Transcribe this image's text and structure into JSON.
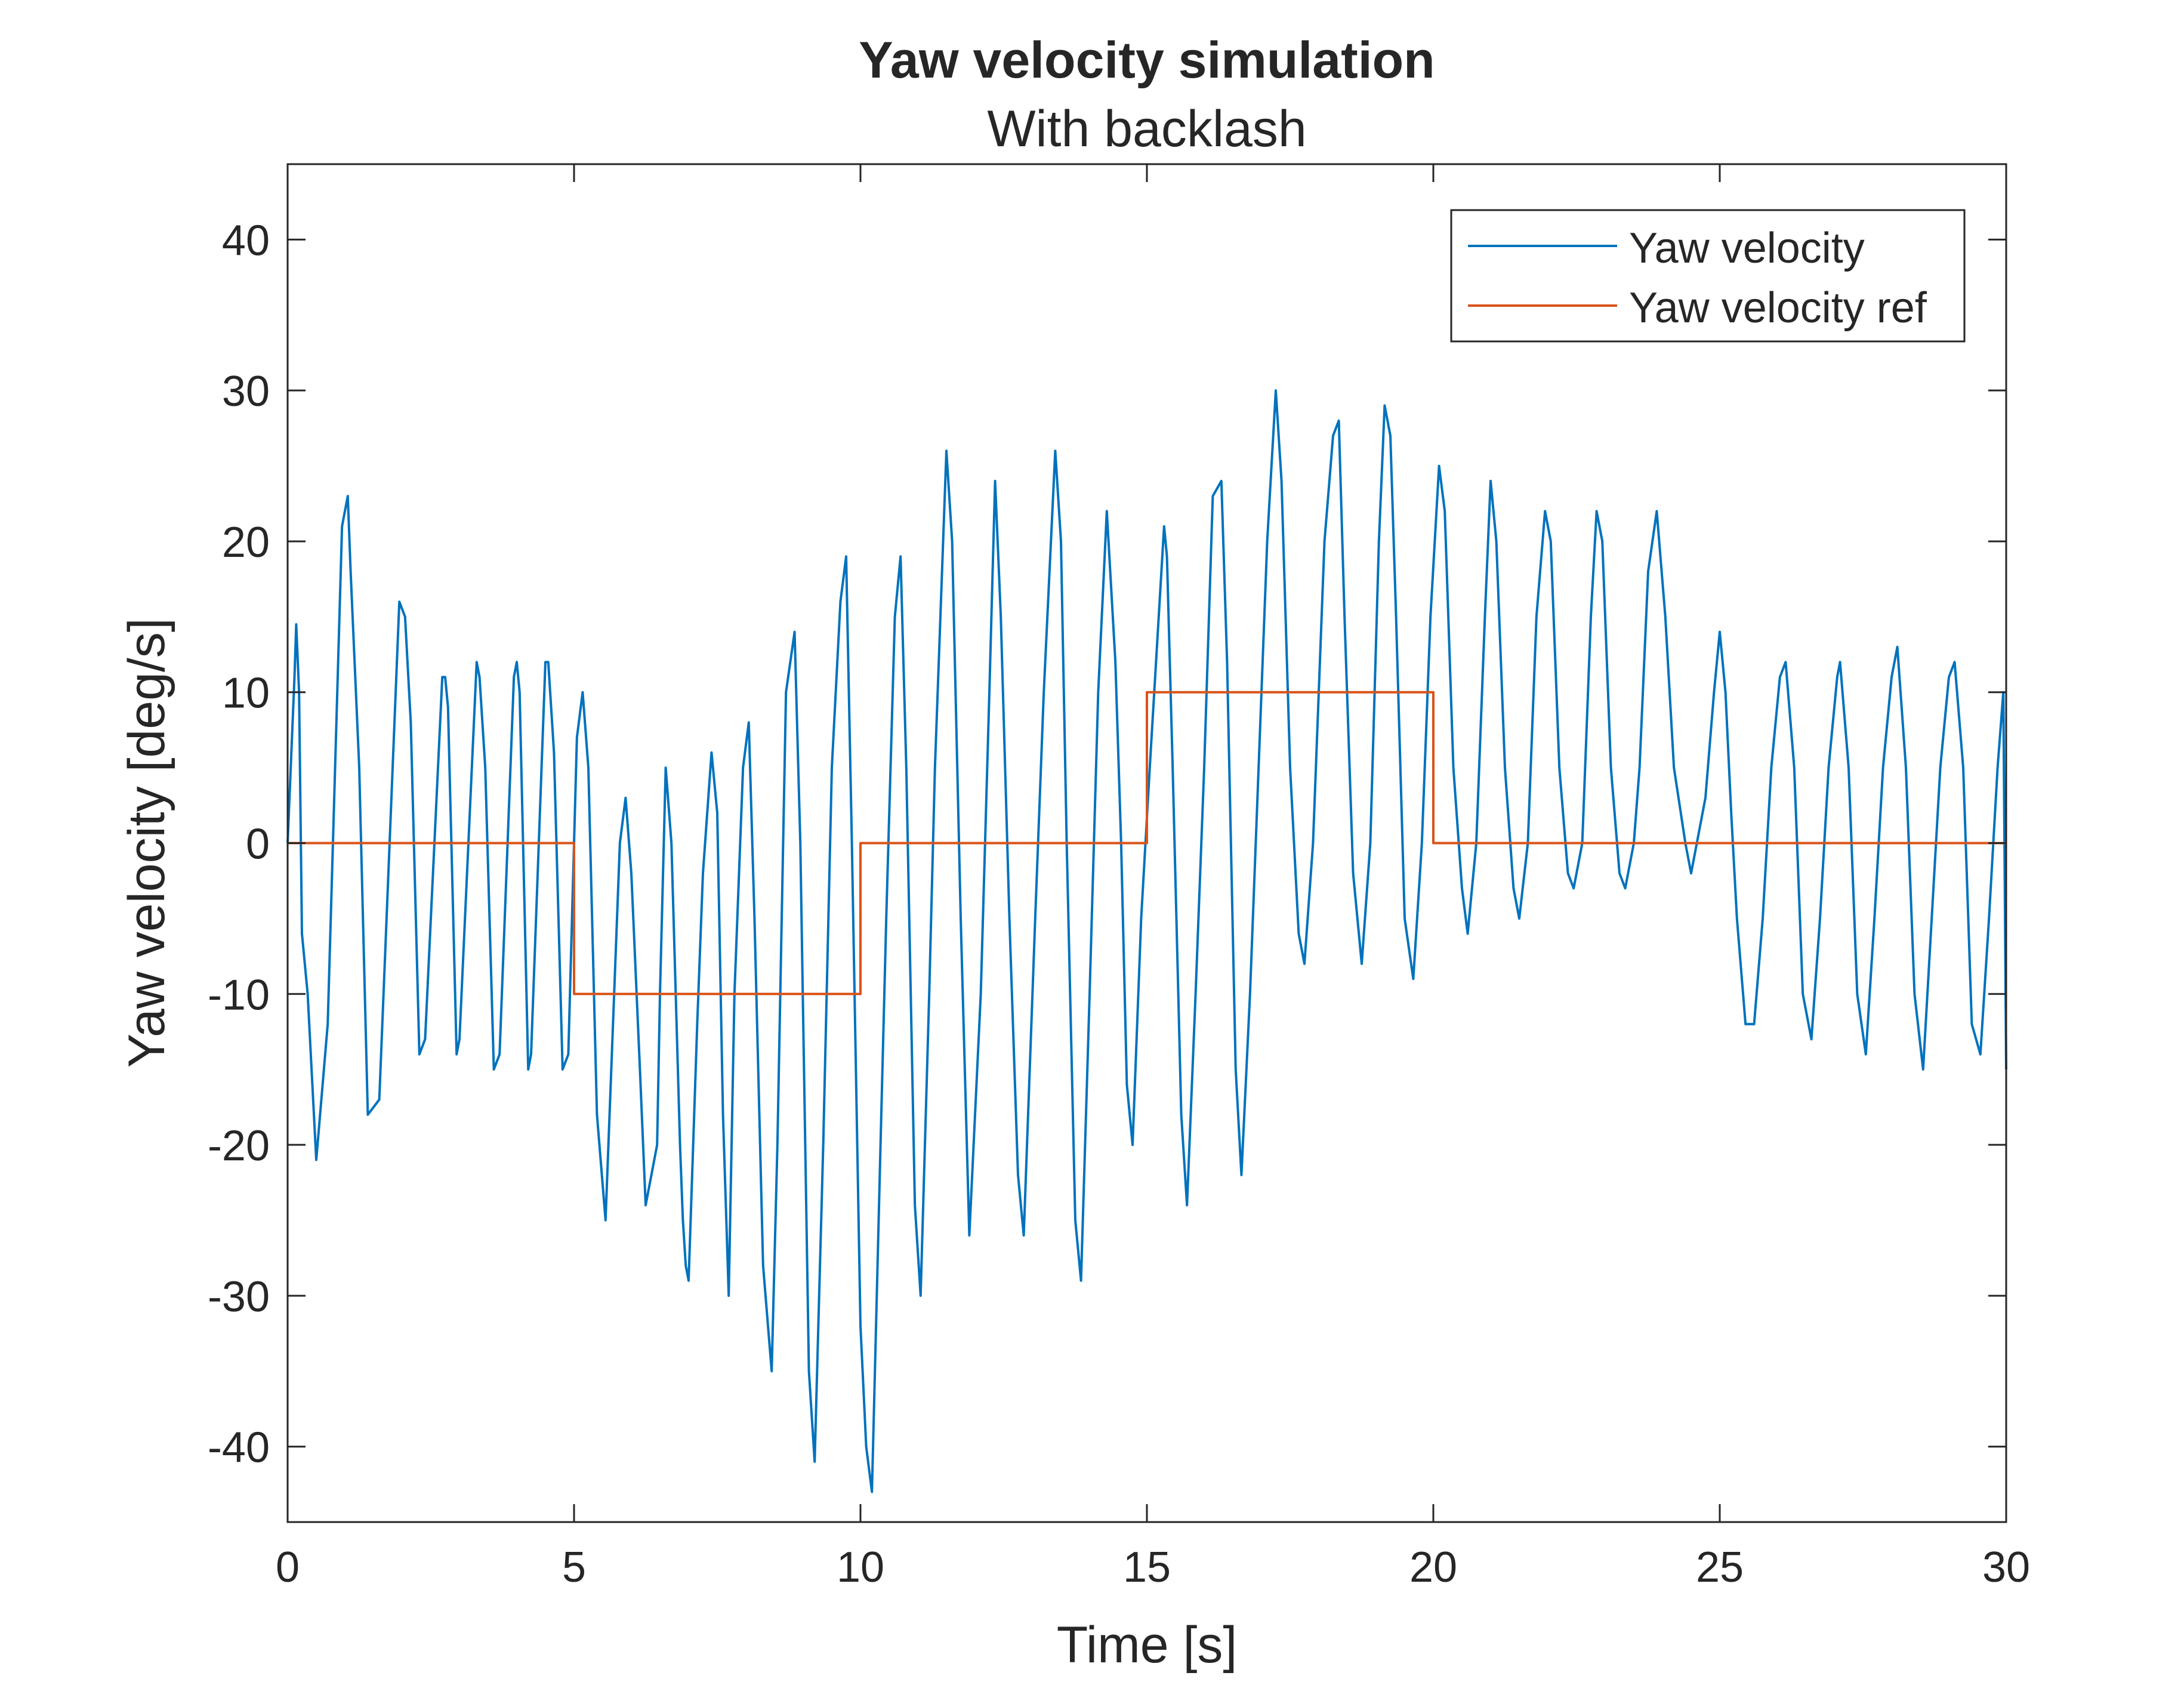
{
  "chart_data": {
    "type": "line",
    "title": "Yaw velocity simulation",
    "subtitle": "With backlash",
    "xlabel": "Time [s]",
    "ylabel": "Yaw velocity [deg/s]",
    "xlim": [
      0,
      30
    ],
    "ylim": [
      -45,
      45
    ],
    "xticks": [
      0,
      5,
      10,
      15,
      20,
      25,
      30
    ],
    "yticks": [
      -40,
      -30,
      -20,
      -10,
      0,
      10,
      20,
      30,
      40
    ],
    "grid": false,
    "legend": {
      "location": "top-right",
      "entries": [
        "Yaw velocity",
        "Yaw velocity ref"
      ]
    },
    "series": [
      {
        "name": "Yaw velocity",
        "color": "#0072BD",
        "points": [
          [
            0,
            0
          ],
          [
            0.12,
            11
          ],
          [
            0.15,
            14.5
          ],
          [
            0.2,
            10
          ],
          [
            0.25,
            -6
          ],
          [
            0.35,
            -10
          ],
          [
            0.5,
            -21
          ],
          [
            0.7,
            -12
          ],
          [
            0.95,
            21
          ],
          [
            1.05,
            23
          ],
          [
            1.1,
            18
          ],
          [
            1.25,
            5
          ],
          [
            1.4,
            -18
          ],
          [
            1.6,
            -17
          ],
          [
            1.95,
            16
          ],
          [
            2.05,
            15
          ],
          [
            2.15,
            8
          ],
          [
            2.3,
            -14
          ],
          [
            2.4,
            -13
          ],
          [
            2.7,
            11
          ],
          [
            2.75,
            11
          ],
          [
            2.8,
            9
          ],
          [
            2.95,
            -14
          ],
          [
            3.0,
            -13
          ],
          [
            3.3,
            12
          ],
          [
            3.35,
            11
          ],
          [
            3.45,
            5
          ],
          [
            3.6,
            -15
          ],
          [
            3.7,
            -14
          ],
          [
            3.95,
            11
          ],
          [
            4.0,
            12
          ],
          [
            4.05,
            10
          ],
          [
            4.2,
            -15
          ],
          [
            4.25,
            -14
          ],
          [
            4.5,
            12
          ],
          [
            4.55,
            12
          ],
          [
            4.65,
            6
          ],
          [
            4.8,
            -15
          ],
          [
            4.9,
            -14
          ],
          [
            5.05,
            7
          ],
          [
            5.15,
            10
          ],
          [
            5.25,
            5
          ],
          [
            5.4,
            -18
          ],
          [
            5.55,
            -25
          ],
          [
            5.7,
            -10
          ],
          [
            5.8,
            0
          ],
          [
            5.9,
            3
          ],
          [
            6.0,
            -2
          ],
          [
            6.15,
            -15
          ],
          [
            6.25,
            -24
          ],
          [
            6.45,
            -20
          ],
          [
            6.5,
            -10
          ],
          [
            6.6,
            5
          ],
          [
            6.7,
            0
          ],
          [
            6.85,
            -20
          ],
          [
            6.9,
            -25
          ],
          [
            6.95,
            -28
          ],
          [
            7.0,
            -29
          ],
          [
            7.15,
            -12
          ],
          [
            7.25,
            -2
          ],
          [
            7.4,
            6
          ],
          [
            7.5,
            2
          ],
          [
            7.6,
            -18
          ],
          [
            7.7,
            -30
          ],
          [
            7.8,
            -10
          ],
          [
            7.95,
            5
          ],
          [
            8.05,
            8
          ],
          [
            8.15,
            -5
          ],
          [
            8.3,
            -28
          ],
          [
            8.45,
            -35
          ],
          [
            8.55,
            -20
          ],
          [
            8.7,
            10
          ],
          [
            8.85,
            14
          ],
          [
            8.95,
            0
          ],
          [
            9.1,
            -35
          ],
          [
            9.2,
            -41
          ],
          [
            9.35,
            -20
          ],
          [
            9.5,
            5
          ],
          [
            9.65,
            16
          ],
          [
            9.75,
            19
          ],
          [
            9.85,
            0
          ],
          [
            10.0,
            -32
          ],
          [
            10.1,
            -40
          ],
          [
            10.2,
            -43
          ],
          [
            10.35,
            -20
          ],
          [
            10.45,
            -5
          ],
          [
            10.6,
            15
          ],
          [
            10.7,
            19
          ],
          [
            10.8,
            5
          ],
          [
            10.95,
            -24
          ],
          [
            11.05,
            -30
          ],
          [
            11.2,
            -10
          ],
          [
            11.3,
            5
          ],
          [
            11.5,
            26
          ],
          [
            11.6,
            20
          ],
          [
            11.75,
            -5
          ],
          [
            11.9,
            -26
          ],
          [
            12.1,
            -10
          ],
          [
            12.25,
            10
          ],
          [
            12.35,
            24
          ],
          [
            12.45,
            15
          ],
          [
            12.6,
            -5
          ],
          [
            12.75,
            -22
          ],
          [
            12.85,
            -26
          ],
          [
            13.05,
            -5
          ],
          [
            13.2,
            10
          ],
          [
            13.4,
            26
          ],
          [
            13.5,
            20
          ],
          [
            13.6,
            0
          ],
          [
            13.75,
            -25
          ],
          [
            13.85,
            -29
          ],
          [
            14.0,
            -10
          ],
          [
            14.15,
            10
          ],
          [
            14.3,
            22
          ],
          [
            14.45,
            12
          ],
          [
            14.55,
            0
          ],
          [
            14.65,
            -16
          ],
          [
            14.75,
            -20
          ],
          [
            14.9,
            -5
          ],
          [
            15.05,
            5
          ],
          [
            15.3,
            21
          ],
          [
            15.35,
            19
          ],
          [
            15.45,
            5
          ],
          [
            15.6,
            -18
          ],
          [
            15.7,
            -24
          ],
          [
            15.85,
            -10
          ],
          [
            16.0,
            5
          ],
          [
            16.15,
            23
          ],
          [
            16.3,
            24
          ],
          [
            16.4,
            12
          ],
          [
            16.55,
            -15
          ],
          [
            16.65,
            -22
          ],
          [
            16.8,
            -10
          ],
          [
            16.95,
            5
          ],
          [
            17.1,
            20
          ],
          [
            17.25,
            30
          ],
          [
            17.35,
            24
          ],
          [
            17.5,
            5
          ],
          [
            17.65,
            -6
          ],
          [
            17.75,
            -8
          ],
          [
            17.9,
            0
          ],
          [
            18.1,
            20
          ],
          [
            18.25,
            27
          ],
          [
            18.35,
            28
          ],
          [
            18.45,
            15
          ],
          [
            18.6,
            -2
          ],
          [
            18.75,
            -8
          ],
          [
            18.9,
            0
          ],
          [
            19.05,
            20
          ],
          [
            19.15,
            29
          ],
          [
            19.25,
            27
          ],
          [
            19.35,
            15
          ],
          [
            19.5,
            -5
          ],
          [
            19.65,
            -9
          ],
          [
            19.8,
            0
          ],
          [
            19.95,
            15
          ],
          [
            20.1,
            25
          ],
          [
            20.2,
            22
          ],
          [
            20.35,
            5
          ],
          [
            20.5,
            -3
          ],
          [
            20.6,
            -6
          ],
          [
            20.75,
            0
          ],
          [
            20.9,
            15
          ],
          [
            21.0,
            24
          ],
          [
            21.1,
            20
          ],
          [
            21.25,
            5
          ],
          [
            21.4,
            -3
          ],
          [
            21.5,
            -5
          ],
          [
            21.65,
            0
          ],
          [
            21.8,
            15
          ],
          [
            21.95,
            22
          ],
          [
            22.05,
            20
          ],
          [
            22.2,
            5
          ],
          [
            22.35,
            -2
          ],
          [
            22.45,
            -3
          ],
          [
            22.6,
            0
          ],
          [
            22.75,
            15
          ],
          [
            22.85,
            22
          ],
          [
            22.95,
            20
          ],
          [
            23.1,
            5
          ],
          [
            23.25,
            -2
          ],
          [
            23.35,
            -3
          ],
          [
            23.5,
            0
          ],
          [
            23.6,
            5
          ],
          [
            23.75,
            18
          ],
          [
            23.9,
            22
          ],
          [
            24.05,
            15
          ],
          [
            24.2,
            5
          ],
          [
            24.4,
            0
          ],
          [
            24.5,
            -2
          ],
          [
            24.6,
            0
          ],
          [
            24.75,
            3
          ],
          [
            24.9,
            10
          ],
          [
            25.0,
            14
          ],
          [
            25.1,
            10
          ],
          [
            25.2,
            2
          ],
          [
            25.3,
            -5
          ],
          [
            25.45,
            -12
          ],
          [
            25.6,
            -12
          ],
          [
            25.75,
            -5
          ],
          [
            25.9,
            5
          ],
          [
            26.05,
            11
          ],
          [
            26.15,
            12
          ],
          [
            26.3,
            5
          ],
          [
            26.45,
            -10
          ],
          [
            26.6,
            -13
          ],
          [
            26.75,
            -5
          ],
          [
            26.9,
            5
          ],
          [
            27.05,
            11
          ],
          [
            27.1,
            12
          ],
          [
            27.25,
            5
          ],
          [
            27.4,
            -10
          ],
          [
            27.55,
            -14
          ],
          [
            27.7,
            -5
          ],
          [
            27.85,
            5
          ],
          [
            28.0,
            11
          ],
          [
            28.1,
            13
          ],
          [
            28.25,
            5
          ],
          [
            28.4,
            -10
          ],
          [
            28.55,
            -15
          ],
          [
            28.7,
            -5
          ],
          [
            28.85,
            5
          ],
          [
            29.0,
            11
          ],
          [
            29.1,
            12
          ],
          [
            29.25,
            5
          ],
          [
            29.4,
            -12
          ],
          [
            29.55,
            -14
          ],
          [
            29.7,
            -5
          ],
          [
            29.85,
            5
          ],
          [
            29.95,
            10
          ],
          [
            30.0,
            -15
          ]
        ]
      },
      {
        "name": "Yaw velocity ref",
        "color": "#D95319",
        "points": [
          [
            0,
            0
          ],
          [
            5,
            0
          ],
          [
            5,
            -10
          ],
          [
            10,
            -10
          ],
          [
            10,
            0
          ],
          [
            15,
            0
          ],
          [
            15,
            10
          ],
          [
            20,
            10
          ],
          [
            20,
            0
          ],
          [
            30,
            0
          ]
        ]
      }
    ]
  }
}
